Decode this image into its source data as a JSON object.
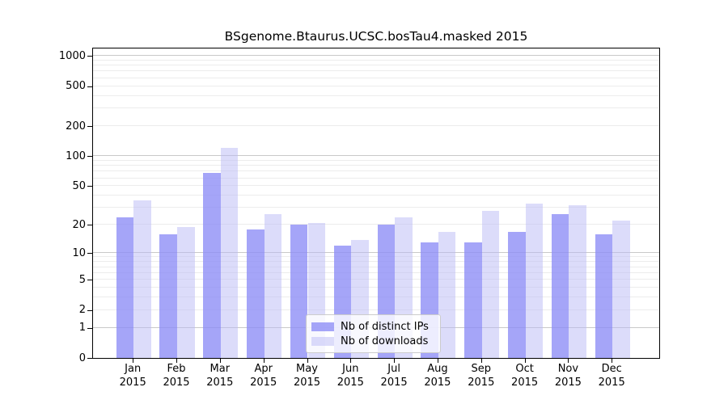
{
  "title": "BSgenome.Btaurus.UCSC.bosTau4.masked 2015",
  "chart_data": {
    "type": "bar",
    "title": "BSgenome.Btaurus.UCSC.bosTau4.masked 2015",
    "categories": [
      "Jan",
      "Feb",
      "Mar",
      "Apr",
      "May",
      "Jun",
      "Jul",
      "Aug",
      "Sep",
      "Oct",
      "Nov",
      "Dec"
    ],
    "category_year": "2015",
    "series": [
      {
        "name": "Nb of distinct IPs",
        "color": "#8f8ff6cc",
        "values": [
          24,
          16,
          68,
          18,
          20,
          12,
          20,
          13,
          13,
          17,
          26,
          16
        ]
      },
      {
        "name": "Nb of downloads",
        "color": "#b9b9f580",
        "values": [
          36,
          19,
          122,
          26,
          21,
          14,
          24,
          17,
          28,
          33,
          32,
          22
        ]
      }
    ],
    "y_ticks": [
      0,
      1,
      2,
      5,
      10,
      20,
      50,
      100,
      200,
      500,
      1000
    ],
    "scale": "log1p",
    "ylim": [
      0,
      1320
    ],
    "xlabel": "",
    "ylabel": "",
    "grid": "horizontal, minor lines each decade step, major at 1/10/100/1000",
    "legend_position": "inside-bottom-center",
    "grid_minor_color": "#ececec",
    "grid_major_color": "#c9c9c9",
    "axis_color": "#000000"
  }
}
